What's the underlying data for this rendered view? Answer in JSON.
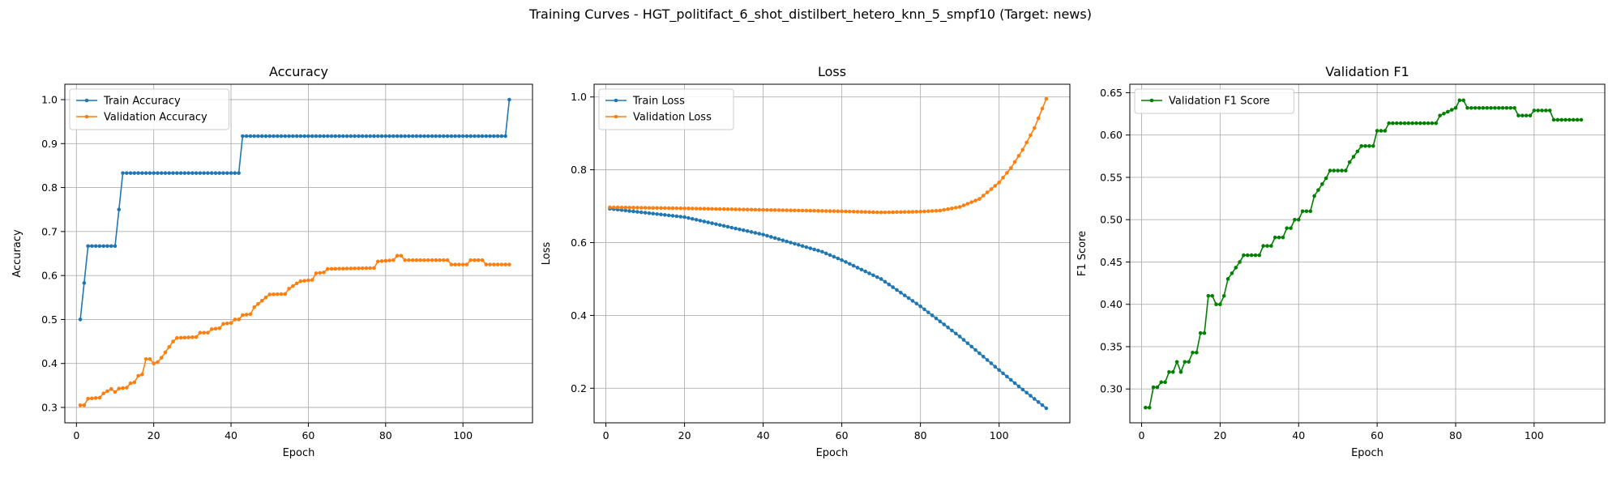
{
  "suptitle": "Training Curves - HGT_politifact_6_shot_distilbert_hetero_knn_5_smpf10 (Target: news)",
  "colors": {
    "train": "#1f77b4",
    "val": "#ff7f0e",
    "f1": "#008000",
    "grid": "#b0b0b0"
  },
  "chart_data": [
    {
      "type": "line",
      "title": "Accuracy",
      "xlabel": "Epoch",
      "ylabel": "Accuracy",
      "xlim": [
        -3,
        118
      ],
      "ylim": [
        0.265,
        1.035
      ],
      "xticks": [
        0,
        20,
        40,
        60,
        80,
        100
      ],
      "xtick_labels": [
        "0",
        "20",
        "40",
        "60",
        "80",
        "100"
      ],
      "yticks": [
        0.3,
        0.4,
        0.5,
        0.6,
        0.7,
        0.8,
        0.9,
        1.0
      ],
      "ytick_labels": [
        "0.3",
        "0.4",
        "0.5",
        "0.6",
        "0.7",
        "0.8",
        "0.9",
        "1.0"
      ],
      "grid": true,
      "legend_position": "top-left",
      "series": [
        {
          "name": "Train Accuracy",
          "color": "#1f77b4",
          "segments": [
            {
              "from": 1,
              "to": 1,
              "start": 0.5,
              "end": 0.5
            },
            {
              "from": 2,
              "to": 2,
              "start": 0.583,
              "end": 0.583
            },
            {
              "from": 3,
              "to": 10,
              "start": 0.667,
              "end": 0.667
            },
            {
              "from": 11,
              "to": 11,
              "start": 0.75,
              "end": 0.75
            },
            {
              "from": 12,
              "to": 42,
              "start": 0.833,
              "end": 0.833
            },
            {
              "from": 43,
              "to": 111,
              "start": 0.917,
              "end": 0.917
            },
            {
              "from": 112,
              "to": 112,
              "start": 1.0,
              "end": 1.0
            }
          ]
        },
        {
          "name": "Validation Accuracy",
          "color": "#ff7f0e",
          "segments": [
            {
              "from": 1,
              "to": 2,
              "start": 0.305,
              "end": 0.305
            },
            {
              "from": 3,
              "to": 6,
              "start": 0.32,
              "end": 0.322
            },
            {
              "from": 7,
              "to": 9,
              "start": 0.332,
              "end": 0.342
            },
            {
              "from": 10,
              "to": 10,
              "start": 0.335,
              "end": 0.335
            },
            {
              "from": 11,
              "to": 13,
              "start": 0.343,
              "end": 0.345
            },
            {
              "from": 14,
              "to": 15,
              "start": 0.355,
              "end": 0.357
            },
            {
              "from": 16,
              "to": 17,
              "start": 0.372,
              "end": 0.375
            },
            {
              "from": 18,
              "to": 19,
              "start": 0.41,
              "end": 0.41
            },
            {
              "from": 20,
              "to": 21,
              "start": 0.4,
              "end": 0.403
            },
            {
              "from": 22,
              "to": 25,
              "start": 0.413,
              "end": 0.45
            },
            {
              "from": 26,
              "to": 31,
              "start": 0.458,
              "end": 0.46
            },
            {
              "from": 32,
              "to": 34,
              "start": 0.47,
              "end": 0.47
            },
            {
              "from": 35,
              "to": 37,
              "start": 0.478,
              "end": 0.48
            },
            {
              "from": 38,
              "to": 40,
              "start": 0.49,
              "end": 0.492
            },
            {
              "from": 41,
              "to": 42,
              "start": 0.5,
              "end": 0.5
            },
            {
              "from": 43,
              "to": 45,
              "start": 0.51,
              "end": 0.512
            },
            {
              "from": 46,
              "to": 49,
              "start": 0.528,
              "end": 0.55
            },
            {
              "from": 50,
              "to": 54,
              "start": 0.557,
              "end": 0.558
            },
            {
              "from": 55,
              "to": 57,
              "start": 0.57,
              "end": 0.582
            },
            {
              "from": 58,
              "to": 61,
              "start": 0.587,
              "end": 0.59
            },
            {
              "from": 62,
              "to": 64,
              "start": 0.605,
              "end": 0.607
            },
            {
              "from": 65,
              "to": 77,
              "start": 0.615,
              "end": 0.617
            },
            {
              "from": 78,
              "to": 82,
              "start": 0.632,
              "end": 0.635
            },
            {
              "from": 83,
              "to": 84,
              "start": 0.645,
              "end": 0.645
            },
            {
              "from": 85,
              "to": 96,
              "start": 0.635,
              "end": 0.635
            },
            {
              "from": 97,
              "to": 101,
              "start": 0.625,
              "end": 0.625
            },
            {
              "from": 102,
              "to": 105,
              "start": 0.635,
              "end": 0.635
            },
            {
              "from": 106,
              "to": 112,
              "start": 0.625,
              "end": 0.625
            }
          ]
        }
      ]
    },
    {
      "type": "line",
      "title": "Loss",
      "xlabel": "Epoch",
      "ylabel": "Loss",
      "xlim": [
        -3,
        118
      ],
      "ylim": [
        0.105,
        1.035
      ],
      "xticks": [
        0,
        20,
        40,
        60,
        80,
        100
      ],
      "xtick_labels": [
        "0",
        "20",
        "40",
        "60",
        "80",
        "100"
      ],
      "yticks": [
        0.2,
        0.4,
        0.6,
        0.8,
        1.0
      ],
      "ytick_labels": [
        "0.2",
        "0.4",
        "0.6",
        "0.8",
        "1.0"
      ],
      "grid": true,
      "legend_position": "top-left",
      "series": [
        {
          "name": "Train Loss",
          "color": "#1f77b4",
          "keypoints": [
            [
              1,
              0.693
            ],
            [
              20,
              0.67
            ],
            [
              40,
              0.622
            ],
            [
              55,
              0.575
            ],
            [
              60,
              0.552
            ],
            [
              70,
              0.5
            ],
            [
              80,
              0.425
            ],
            [
              90,
              0.342
            ],
            [
              100,
              0.25
            ],
            [
              105,
              0.205
            ],
            [
              112,
              0.145
            ]
          ]
        },
        {
          "name": "Validation Loss",
          "color": "#ff7f0e",
          "keypoints": [
            [
              1,
              0.697
            ],
            [
              20,
              0.694
            ],
            [
              40,
              0.69
            ],
            [
              60,
              0.686
            ],
            [
              70,
              0.683
            ],
            [
              80,
              0.685
            ],
            [
              85,
              0.688
            ],
            [
              90,
              0.698
            ],
            [
              95,
              0.72
            ],
            [
              100,
              0.765
            ],
            [
              103,
              0.805
            ],
            [
              106,
              0.855
            ],
            [
              109,
              0.915
            ],
            [
              112,
              0.995
            ]
          ]
        }
      ]
    },
    {
      "type": "line",
      "title": "Validation F1",
      "xlabel": "Epoch",
      "ylabel": "F1 Score",
      "xlim": [
        -3,
        118
      ],
      "ylim": [
        0.26,
        0.66
      ],
      "xticks": [
        0,
        20,
        40,
        60,
        80,
        100
      ],
      "xtick_labels": [
        "0",
        "20",
        "40",
        "60",
        "80",
        "100"
      ],
      "yticks": [
        0.3,
        0.35,
        0.4,
        0.45,
        0.5,
        0.55,
        0.6,
        0.65
      ],
      "ytick_labels": [
        "0.30",
        "0.35",
        "0.40",
        "0.45",
        "0.50",
        "0.55",
        "0.60",
        "0.65"
      ],
      "grid": true,
      "legend_position": "top-left",
      "series": [
        {
          "name": "Validation F1 Score",
          "color": "#008000",
          "segments": [
            {
              "from": 1,
              "to": 2,
              "start": 0.278,
              "end": 0.278
            },
            {
              "from": 3,
              "to": 4,
              "start": 0.302,
              "end": 0.302
            },
            {
              "from": 5,
              "to": 6,
              "start": 0.308,
              "end": 0.308
            },
            {
              "from": 7,
              "to": 8,
              "start": 0.32,
              "end": 0.32
            },
            {
              "from": 9,
              "to": 9,
              "start": 0.332,
              "end": 0.332
            },
            {
              "from": 10,
              "to": 10,
              "start": 0.32,
              "end": 0.32
            },
            {
              "from": 11,
              "to": 12,
              "start": 0.332,
              "end": 0.332
            },
            {
              "from": 13,
              "to": 14,
              "start": 0.343,
              "end": 0.343
            },
            {
              "from": 15,
              "to": 16,
              "start": 0.366,
              "end": 0.366
            },
            {
              "from": 17,
              "to": 18,
              "start": 0.41,
              "end": 0.41
            },
            {
              "from": 19,
              "to": 20,
              "start": 0.4,
              "end": 0.4
            },
            {
              "from": 21,
              "to": 21,
              "start": 0.41,
              "end": 0.41
            },
            {
              "from": 22,
              "to": 25,
              "start": 0.43,
              "end": 0.45
            },
            {
              "from": 26,
              "to": 30,
              "start": 0.458,
              "end": 0.458
            },
            {
              "from": 31,
              "to": 33,
              "start": 0.469,
              "end": 0.469
            },
            {
              "from": 34,
              "to": 36,
              "start": 0.479,
              "end": 0.479
            },
            {
              "from": 37,
              "to": 38,
              "start": 0.49,
              "end": 0.49
            },
            {
              "from": 39,
              "to": 40,
              "start": 0.5,
              "end": 0.5
            },
            {
              "from": 41,
              "to": 43,
              "start": 0.51,
              "end": 0.51
            },
            {
              "from": 44,
              "to": 47,
              "start": 0.528,
              "end": 0.549
            },
            {
              "from": 48,
              "to": 52,
              "start": 0.558,
              "end": 0.558
            },
            {
              "from": 53,
              "to": 56,
              "start": 0.568,
              "end": 0.587
            },
            {
              "from": 57,
              "to": 59,
              "start": 0.587,
              "end": 0.587
            },
            {
              "from": 60,
              "to": 62,
              "start": 0.605,
              "end": 0.605
            },
            {
              "from": 63,
              "to": 75,
              "start": 0.614,
              "end": 0.614
            },
            {
              "from": 76,
              "to": 80,
              "start": 0.623,
              "end": 0.632
            },
            {
              "from": 81,
              "to": 82,
              "start": 0.641,
              "end": 0.641
            },
            {
              "from": 83,
              "to": 95,
              "start": 0.632,
              "end": 0.632
            },
            {
              "from": 96,
              "to": 99,
              "start": 0.623,
              "end": 0.623
            },
            {
              "from": 100,
              "to": 104,
              "start": 0.629,
              "end": 0.629
            },
            {
              "from": 105,
              "to": 112,
              "start": 0.618,
              "end": 0.618
            }
          ]
        }
      ]
    }
  ]
}
